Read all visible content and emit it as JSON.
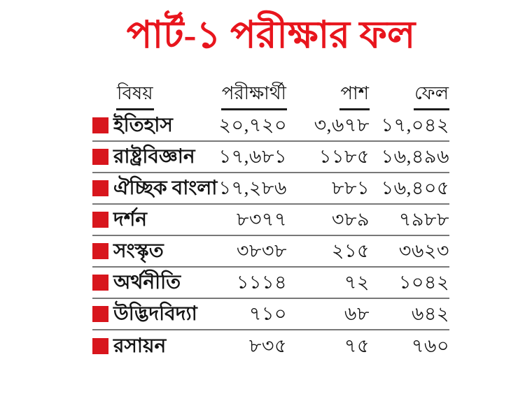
{
  "title": {
    "text": "পার্ট-১ পরীক্ষার ফল"
  },
  "colors": {
    "background": "#ffffff",
    "title_red": "#e8151d",
    "bullet_red": "#d8161d",
    "separator_gray": "#787878",
    "header_underline": "#1c1c1c",
    "text": "#141414"
  },
  "table": {
    "headers": [
      "বিষয়",
      "পরীক্ষার্থী",
      "পাশ",
      "ফেল"
    ],
    "rows": [
      {
        "subject": "ইতিহাস",
        "examinees": "২০,৭২০",
        "pass": "৩,৬৭৮",
        "fail": "১৭,০৪২"
      },
      {
        "subject": "রাষ্ট্রবিজ্ঞান",
        "examinees": "১৭,৬৮১",
        "pass": "১১৮৫",
        "fail": "১৬,৪৯৬"
      },
      {
        "subject": "ঐচ্ছিক বাংলা",
        "examinees": "১৭,২৮৬",
        "pass": "৮৮১",
        "fail": "১৬,৪০৫"
      },
      {
        "subject": "দর্শন",
        "examinees": "৮৩৭৭",
        "pass": "৩৮৯",
        "fail": "৭৯৮৮"
      },
      {
        "subject": "সংস্কৃত",
        "examinees": "৩৮৩৮",
        "pass": "২১৫",
        "fail": "৩৬২৩"
      },
      {
        "subject": "অর্থনীতি",
        "examinees": "১১১৪",
        "pass": "৭২",
        "fail": "১০৪২"
      },
      {
        "subject": "উদ্ভিদবিদ্যা",
        "examinees": "৭১০",
        "pass": "৬৮",
        "fail": "৬৪২"
      },
      {
        "subject": "রসায়ন",
        "examinees": "৮৩৫",
        "pass": "৭৫",
        "fail": "৭৬০"
      }
    ]
  },
  "chart_data": {
    "type": "table",
    "title": "পার্ট-১ পরীক্ষার ফল",
    "columns": [
      "বিষয়",
      "পরীক্ষার্থী",
      "পাশ",
      "ফেল"
    ],
    "rows": [
      [
        "ইতিহাস",
        "২০,৭২০",
        "৩,৬৭৮",
        "১৭,০৪২"
      ],
      [
        "রাষ্ট্রবিজ্ঞান",
        "১৭,৬৮১",
        "১১৮৫",
        "১৬,৪৯৬"
      ],
      [
        "ঐচ্ছিক বাংলা",
        "১৭,২৮৬",
        "৮৮১",
        "১৬,৪০৫"
      ],
      [
        "দর্শন",
        "৮৩৭৭",
        "৩৮৯",
        "৭৯৮৮"
      ],
      [
        "সংস্কৃত",
        "৩৮৩৮",
        "২১৫",
        "৩৬২৩"
      ],
      [
        "অর্থনীতি",
        "১১১৪",
        "৭২",
        "১০৪২"
      ],
      [
        "উদ্ভিদবিদ্যা",
        "৭১০",
        "৬৮",
        "৬৪২"
      ],
      [
        "রসায়ন",
        "৮৩৫",
        "৭৫",
        "৭৬০"
      ]
    ],
    "rows_numeric": [
      [
        20720,
        3678,
        17042
      ],
      [
        17681,
        1185,
        16496
      ],
      [
        17286,
        881,
        16405
      ],
      [
        8377,
        389,
        7988
      ],
      [
        3838,
        215,
        3623
      ],
      [
        1114,
        72,
        1042
      ],
      [
        710,
        68,
        642
      ],
      [
        835,
        75,
        760
      ]
    ]
  }
}
